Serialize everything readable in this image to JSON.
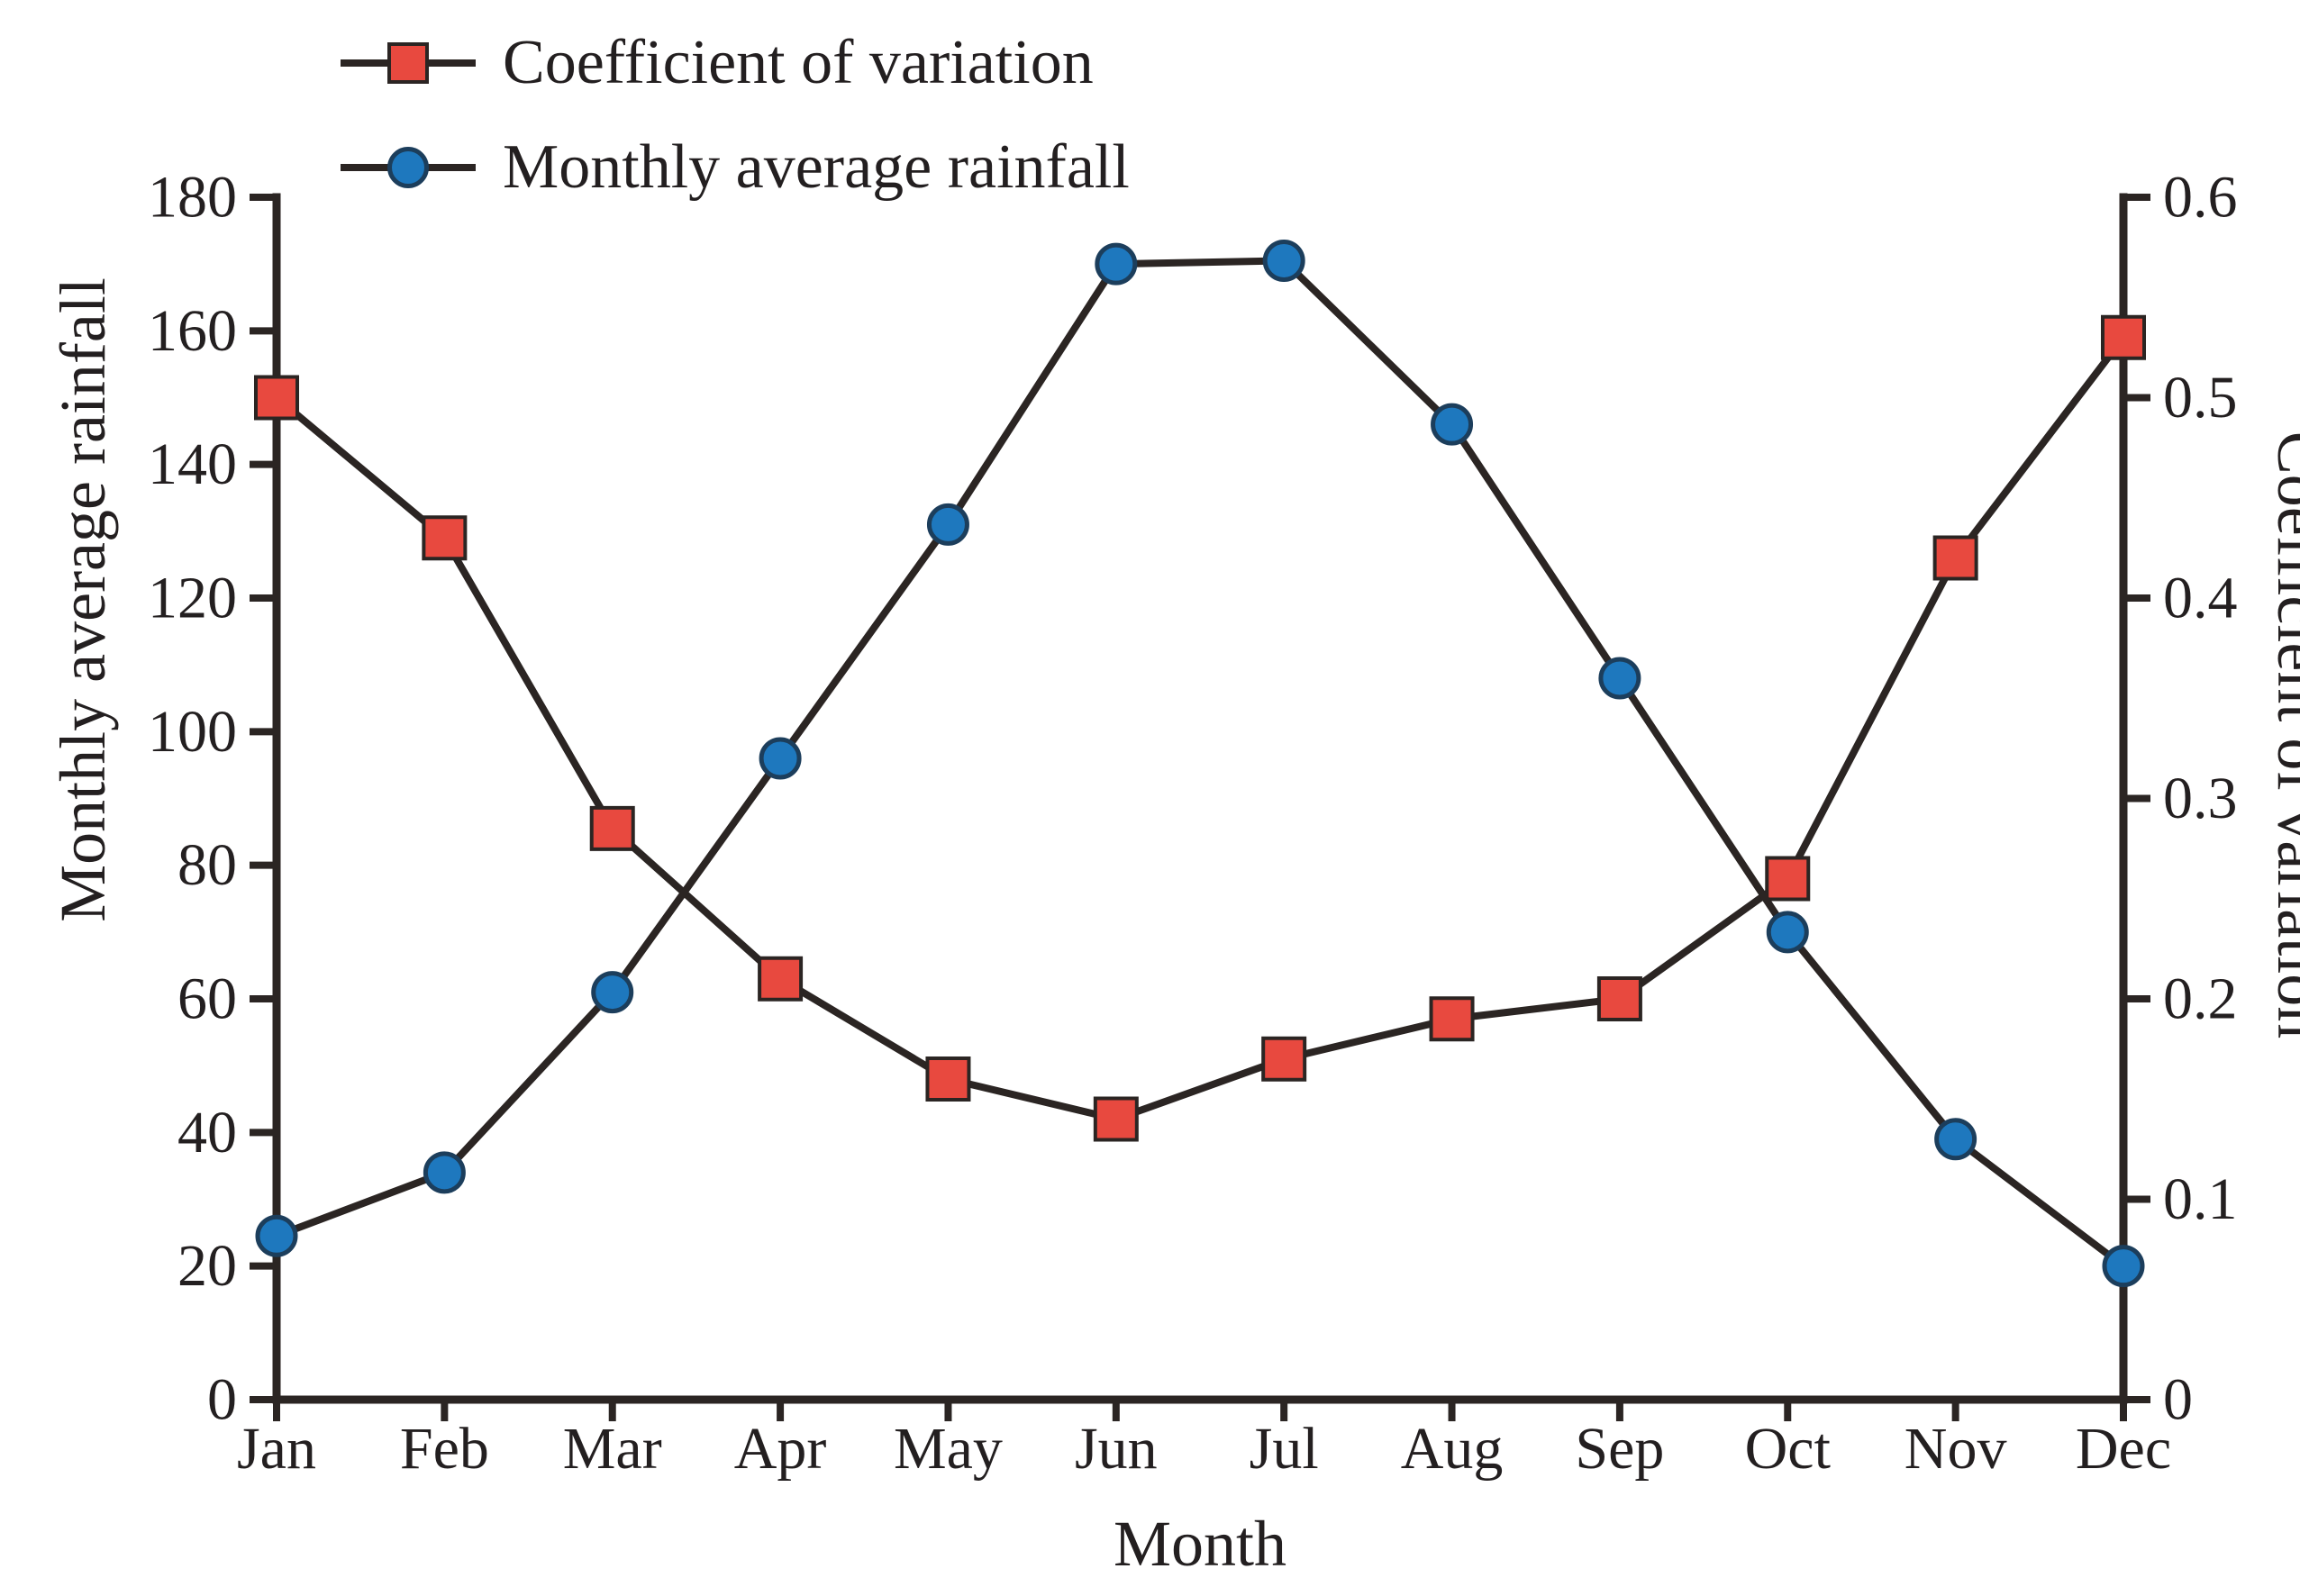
{
  "chart_data": {
    "type": "line",
    "title": "",
    "xlabel": "Month",
    "x_categories": [
      "Jan",
      "Feb",
      "Mar",
      "Apr",
      "May",
      "Jun",
      "Jul",
      "Aug",
      "Sep",
      "Oct",
      "Nov",
      "Dec"
    ],
    "left_axis": {
      "label": "Monthly average rainfall",
      "min": 0,
      "max": 180,
      "tick_labels": [
        "0",
        "20",
        "40",
        "60",
        "80",
        "100",
        "120",
        "140",
        "160",
        "180"
      ]
    },
    "right_axis": {
      "label": "Coefficient of variation",
      "min": 0,
      "max": 0.6,
      "tick_labels": [
        "0",
        "0.1",
        "0.2",
        "0.3",
        "0.4",
        "0.5",
        "0.6"
      ]
    },
    "series": [
      {
        "name": "Coefficient of variation",
        "axis": "right",
        "marker": "square",
        "color": "#e8493f",
        "marker_stroke": "#2b2523",
        "values": [
          0.5,
          0.43,
          0.285,
          0.21,
          0.16,
          0.14,
          0.17,
          0.19,
          0.2,
          0.26,
          0.42,
          0.53
        ]
      },
      {
        "name": "Monthly average rainfall",
        "axis": "left",
        "marker": "circle",
        "color": "#1e78be",
        "marker_stroke": "#1c3e5c",
        "values": [
          24.5,
          34,
          61,
          96,
          131,
          170,
          170.5,
          146,
          108,
          70,
          39,
          20
        ]
      }
    ],
    "line_color": "#2b2523",
    "text_color": "#231f20",
    "grid": false,
    "legend_position": "top-left"
  }
}
